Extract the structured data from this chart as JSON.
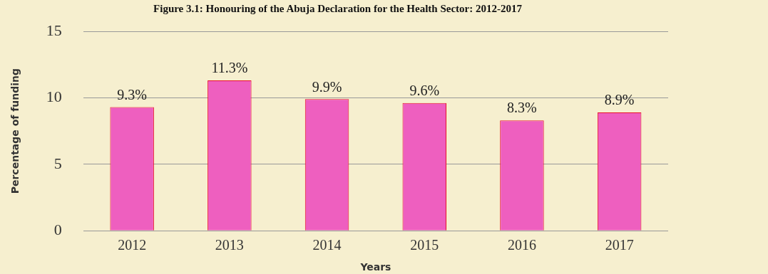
{
  "chart_data": {
    "type": "bar",
    "title": "Figure 3.1: Honouring of the Abuja Declaration for the Health Sector: 2012-2017",
    "xlabel": "Years",
    "ylabel": "Percentage of funding",
    "categories": [
      "2012",
      "2013",
      "2014",
      "2015",
      "2016",
      "2017"
    ],
    "values": [
      9.3,
      11.3,
      9.9,
      9.6,
      8.3,
      8.9
    ],
    "value_labels": [
      "9.3%",
      "11.3%",
      "9.9%",
      "9.6%",
      "8.3%",
      "8.9%"
    ],
    "color": "#ee5fbf",
    "ylim": [
      0,
      15
    ],
    "yticks": [
      0,
      5,
      10,
      15
    ],
    "grid": "y",
    "legend": false
  }
}
